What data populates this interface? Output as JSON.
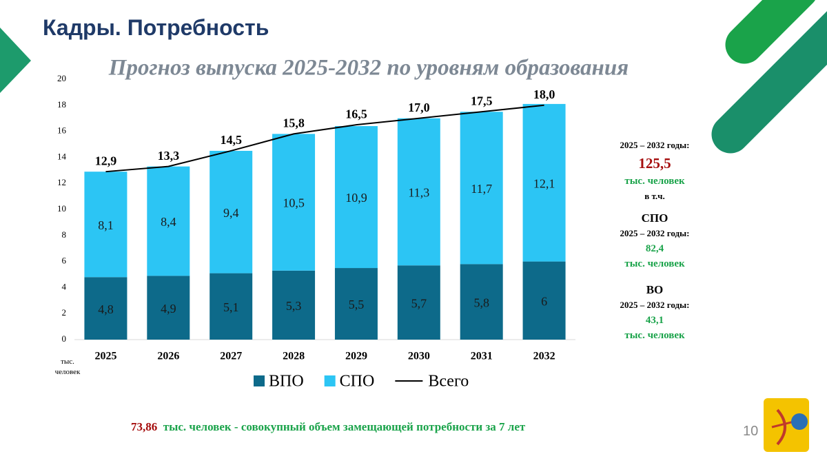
{
  "header": {
    "title": "Кадры. Потребность"
  },
  "chart_data": {
    "type": "bar",
    "stacked": true,
    "title": "Прогноз выпуска 2025-2032 по уровням образования",
    "y_label": "тыс. человек",
    "categories": [
      "2025",
      "2026",
      "2027",
      "2028",
      "2029",
      "2030",
      "2031",
      "2032"
    ],
    "series": [
      {
        "name": "ВПО",
        "color": "#0d6a8a",
        "values": [
          4.8,
          4.9,
          5.1,
          5.3,
          5.5,
          5.7,
          5.8,
          6
        ],
        "value_labels": [
          "4,8",
          "4,9",
          "5,1",
          "5,3",
          "5,5",
          "5,7",
          "5,8",
          "6"
        ]
      },
      {
        "name": "СПО",
        "color": "#2cc5f4",
        "values": [
          8.1,
          8.4,
          9.4,
          10.5,
          10.9,
          11.3,
          11.7,
          12.1
        ],
        "value_labels": [
          "8,1",
          "8,4",
          "9,4",
          "10,5",
          "10,9",
          "11,3",
          "11,7",
          "12,1"
        ]
      },
      {
        "name": "Всего",
        "type": "line",
        "color": "#000000",
        "values": [
          12.9,
          13.3,
          14.5,
          15.8,
          16.5,
          17.0,
          17.5,
          18.0
        ],
        "value_labels": [
          "12,9",
          "13,3",
          "14,5",
          "15,8",
          "16,5",
          "17,0",
          "17,5",
          "18,0"
        ]
      }
    ],
    "ylim": [
      0,
      20
    ],
    "yticks": [
      0,
      2,
      4,
      6,
      8,
      10,
      12,
      14,
      16,
      18,
      20
    ],
    "grid": false
  },
  "sidebar": {
    "total": {
      "period": "2025 – 2032 годы:",
      "value": "125,5",
      "unit": "тыс. человек",
      "note": "в т.ч."
    },
    "spo": {
      "heading": "СПО",
      "period": "2025 – 2032 годы:",
      "value": "82,4",
      "unit": "тыс. человек"
    },
    "vo": {
      "heading": "ВО",
      "period": "2025 – 2032 годы:",
      "value": "43,1",
      "unit": "тыс. человек"
    }
  },
  "footer": {
    "value": "73,86",
    "text": "тыс. человек - совокупный объем замещающей потребности за 7 лет",
    "page": "10"
  }
}
